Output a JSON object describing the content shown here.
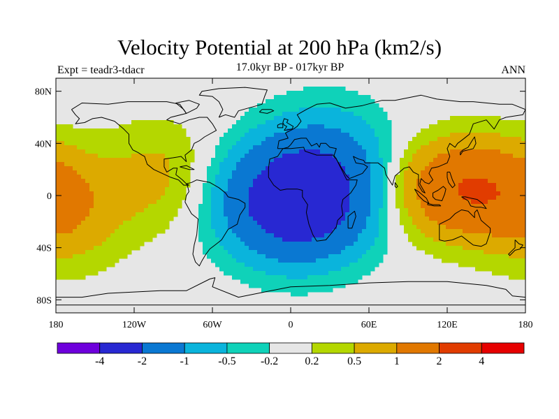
{
  "title": "Velocity Potential at 200 hPa (km2/s)",
  "subtitle": "17.0kyr BP - 017kyr BP",
  "left_label": "Expt = teadr3-tdacr",
  "right_label": "ANN",
  "map": {
    "projection": "cylindrical-equidistant",
    "lon_range": [
      -180,
      180
    ],
    "lat_range": [
      -90,
      90
    ],
    "lon_ticks": [
      {
        "value": -180,
        "label": "180"
      },
      {
        "value": -120,
        "label": "120W"
      },
      {
        "value": -60,
        "label": "60W"
      },
      {
        "value": 0,
        "label": "0"
      },
      {
        "value": 60,
        "label": "60E"
      },
      {
        "value": 120,
        "label": "120E"
      },
      {
        "value": 180,
        "label": "180"
      }
    ],
    "lat_ticks": [
      {
        "value": 80,
        "label": "80N"
      },
      {
        "value": 40,
        "label": "40N"
      },
      {
        "value": 0,
        "label": "0"
      },
      {
        "value": -40,
        "label": "40S"
      },
      {
        "value": -80,
        "label": "80S"
      }
    ],
    "background_color": "#e6e6e6"
  },
  "colorbar": {
    "colors": [
      "#6e00dc",
      "#2828d2",
      "#0a78d2",
      "#0ab4dc",
      "#0fd2b9",
      "#e6e6e6",
      "#b4d700",
      "#dcaa00",
      "#e17800",
      "#e13c00",
      "#e60000"
    ],
    "labels": [
      "-4",
      "-2",
      "-1",
      "-0.5",
      "-0.2",
      "0.2",
      "0.5",
      "1",
      "2",
      "4"
    ]
  },
  "field": {
    "contour_levels": [
      -4,
      -2,
      -1,
      -0.5,
      -0.2,
      0.2,
      0.5,
      1,
      2,
      4
    ],
    "centers": [
      {
        "lon": 5,
        "lat": -5,
        "amp": -3.2,
        "sx": 38,
        "sy": 30
      },
      {
        "lon": 30,
        "lat": 30,
        "amp": -0.8,
        "sx": 35,
        "sy": 30
      },
      {
        "lon": 135,
        "lat": 5,
        "amp": 2.0,
        "sx": 40,
        "sy": 26
      },
      {
        "lon": -100,
        "lat": 15,
        "amp": 0.6,
        "sx": 30,
        "sy": 30
      },
      {
        "lon": -170,
        "lat": -15,
        "amp": 0.7,
        "sx": 30,
        "sy": 30
      }
    ]
  }
}
